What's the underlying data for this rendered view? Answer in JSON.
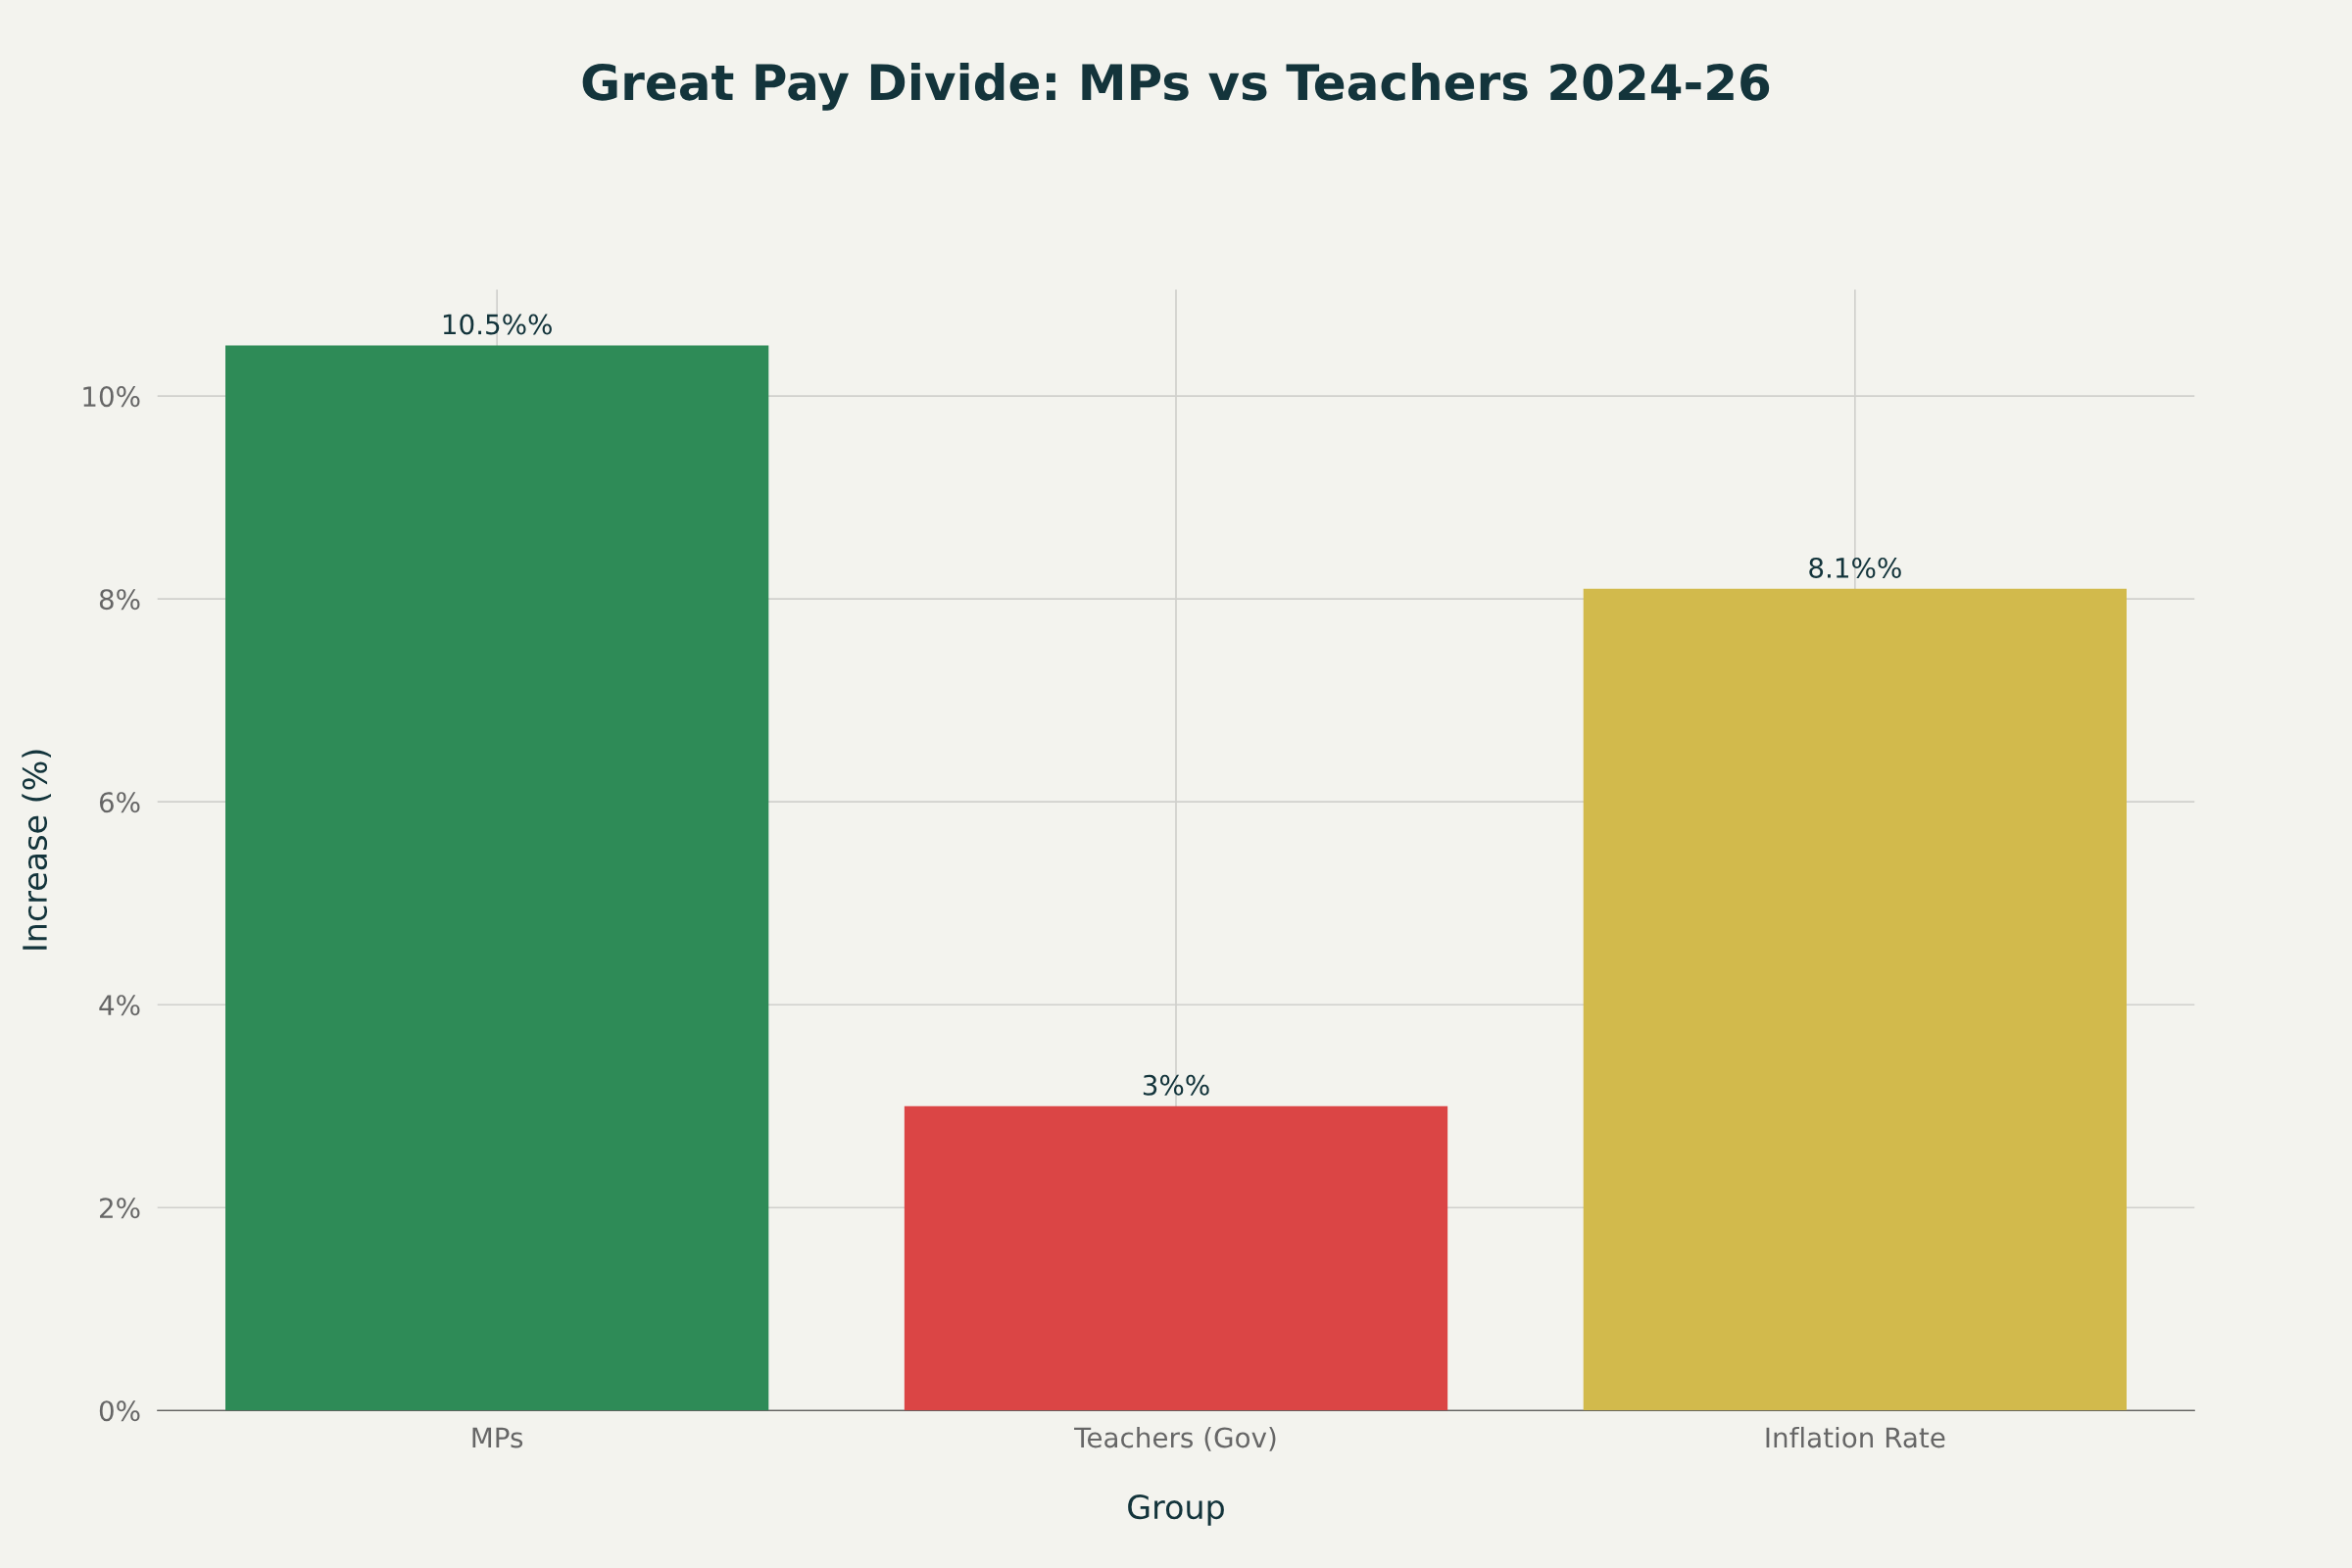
{
  "chart_data": {
    "type": "bar",
    "title": "Great Pay Divide: MPs vs Teachers 2024-26",
    "xlabel": "Group",
    "ylabel": "Increase (%)",
    "categories": [
      "MPs",
      "Teachers (Gov)",
      "Inflation Rate"
    ],
    "values": [
      10.5,
      3,
      8.1
    ],
    "colors": [
      "#2e8b57",
      "#db4545",
      "#d2ba4c"
    ],
    "value_labels": [
      "10.5%%",
      "3%%",
      "8.1%%"
    ],
    "ylim": [
      0,
      11.05
    ],
    "yticks": [
      {
        "value": 0,
        "label": "0%"
      },
      {
        "value": 2,
        "label": "2%"
      },
      {
        "value": 4,
        "label": "4%"
      },
      {
        "value": 6,
        "label": "6%"
      },
      {
        "value": 8,
        "label": "8%"
      },
      {
        "value": 10,
        "label": "10%"
      }
    ],
    "grid": true,
    "legend": false
  }
}
